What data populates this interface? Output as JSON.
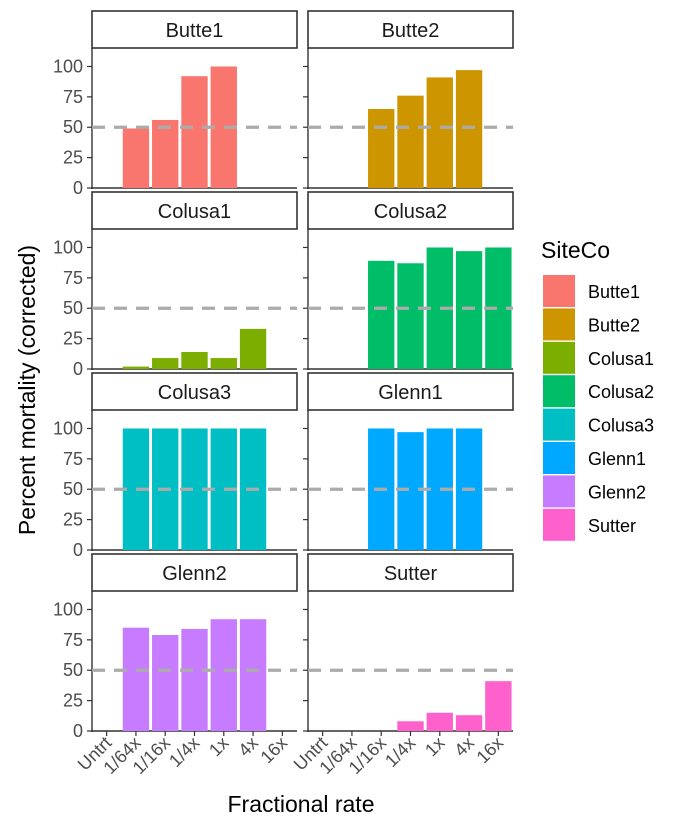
{
  "chart_data": {
    "type": "bar",
    "facet_by": "SiteCo",
    "xlabel": "Fractional rate",
    "ylabel": "Percent mortality (corrected)",
    "categories": [
      "Untrt",
      "1/64x",
      "1/16x",
      "1/4x",
      "1x",
      "4x",
      "16x"
    ],
    "yticks": [
      0,
      25,
      50,
      75,
      100
    ],
    "reference_line": 50,
    "legend": {
      "title": "SiteCo",
      "position": "right",
      "entries": [
        "Butte1",
        "Butte2",
        "Colusa1",
        "Colusa2",
        "Colusa3",
        "Glenn1",
        "Glenn2",
        "Sutter"
      ]
    },
    "series": [
      {
        "name": "Butte1",
        "color": "#F8766D",
        "values": [
          null,
          49,
          56,
          92,
          100,
          null,
          null
        ]
      },
      {
        "name": "Butte2",
        "color": "#CD9600",
        "values": [
          null,
          null,
          65,
          76,
          91,
          97,
          null
        ]
      },
      {
        "name": "Colusa1",
        "color": "#7CAE00",
        "values": [
          null,
          2,
          9,
          14,
          9,
          33,
          null
        ]
      },
      {
        "name": "Colusa2",
        "color": "#00BE67",
        "values": [
          null,
          null,
          89,
          87,
          100,
          97,
          100
        ]
      },
      {
        "name": "Colusa3",
        "color": "#00BFC4",
        "values": [
          null,
          100,
          100,
          100,
          100,
          100,
          null
        ]
      },
      {
        "name": "Glenn1",
        "color": "#00A9FF",
        "values": [
          null,
          null,
          100,
          97,
          100,
          100,
          null
        ]
      },
      {
        "name": "Glenn2",
        "color": "#C77CFF",
        "values": [
          null,
          85,
          79,
          84,
          92,
          92,
          null
        ]
      },
      {
        "name": "Sutter",
        "color": "#FF61CC",
        "values": [
          null,
          null,
          null,
          8,
          15,
          13,
          41
        ]
      }
    ]
  }
}
